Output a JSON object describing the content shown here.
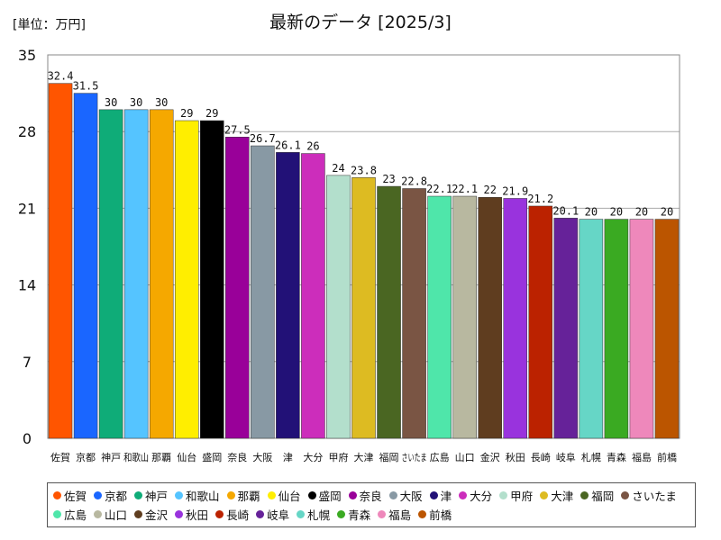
{
  "chart_data": {
    "type": "bar",
    "title": "最新のデータ [2025/3]",
    "unit_label": "[単位：万円]",
    "ylim": [
      0,
      35
    ],
    "yticks": [
      0,
      7,
      14,
      21,
      28,
      35
    ],
    "grid": true,
    "legend_position": "bottom",
    "categories": [
      "佐賀",
      "京都",
      "神戸",
      "和歌山",
      "那覇",
      "仙台",
      "盛岡",
      "奈良",
      "大阪",
      "津",
      "大分",
      "甲府",
      "大津",
      "福岡",
      "さいたま",
      "広島",
      "山口",
      "金沢",
      "秋田",
      "長崎",
      "岐阜",
      "札幌",
      "青森",
      "福島",
      "前橋"
    ],
    "values": [
      32.4,
      31.5,
      30,
      30,
      30,
      29,
      29,
      27.5,
      26.7,
      26.1,
      26,
      24,
      23.8,
      23,
      22.8,
      22.1,
      22.1,
      22,
      21.9,
      21.2,
      20.1,
      20,
      20,
      20,
      20
    ],
    "value_labels": [
      "32.4",
      "31.5",
      "30",
      "30",
      "30",
      "29",
      "29",
      "27.5",
      "26.7",
      "26.1",
      "26",
      "24",
      "23.8",
      "23",
      "22.8",
      "22.1",
      "22.1",
      "22",
      "21.9",
      "21.2",
      "20.1",
      "20",
      "20",
      "20",
      "20"
    ],
    "colors": [
      "#ff5500",
      "#1a66ff",
      "#0fac78",
      "#55c4ff",
      "#f5a800",
      "#ffee00",
      "#000000",
      "#990099",
      "#8899a4",
      "#221177",
      "#cc2dbb",
      "#b3dfcc",
      "#ddbb22",
      "#4a6622",
      "#7a5544",
      "#4fe6aa",
      "#b8b8a0",
      "#5f3d1f",
      "#9933dd",
      "#bb2200",
      "#662299",
      "#66d6c6",
      "#3aaa22",
      "#ee88bb",
      "#bb5500"
    ]
  }
}
